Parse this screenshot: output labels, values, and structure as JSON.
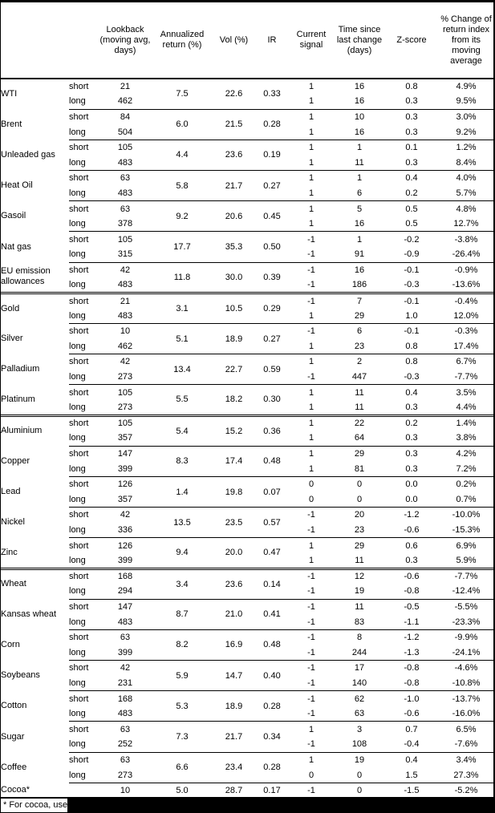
{
  "colors": {
    "text": "#000000",
    "background": "#ffffff",
    "border": "#000000",
    "redaction": "#000000"
  },
  "table": {
    "columns": [
      {
        "id": "commodity",
        "label": ""
      },
      {
        "id": "horizon",
        "label": ""
      },
      {
        "id": "lookback",
        "label": "Lookback (moving avg, days)"
      },
      {
        "id": "ann_return",
        "label": "Annualized return (%)"
      },
      {
        "id": "vol",
        "label": "Vol (%)"
      },
      {
        "id": "ir",
        "label": "IR"
      },
      {
        "id": "signal",
        "label": "Current signal"
      },
      {
        "id": "time_since",
        "label": "Time since last change (days)"
      },
      {
        "id": "zscore",
        "label": "Z-score"
      },
      {
        "id": "pct_change",
        "label": "% Change of return index from its moving average"
      }
    ],
    "groups": [
      {
        "name": "WTI",
        "section_start": false,
        "ann_return": "7.5",
        "vol": "22.6",
        "ir": "0.33",
        "rows": [
          {
            "horizon": "short",
            "lookback": "21",
            "signal": "1",
            "time": "16",
            "zscore": "0.8",
            "pct": "4.9%"
          },
          {
            "horizon": "long",
            "lookback": "462",
            "signal": "1",
            "time": "16",
            "zscore": "0.3",
            "pct": "9.5%"
          }
        ]
      },
      {
        "name": "Brent",
        "section_start": false,
        "ann_return": "6.0",
        "vol": "21.5",
        "ir": "0.28",
        "rows": [
          {
            "horizon": "short",
            "lookback": "84",
            "signal": "1",
            "time": "10",
            "zscore": "0.3",
            "pct": "3.0%"
          },
          {
            "horizon": "long",
            "lookback": "504",
            "signal": "1",
            "time": "16",
            "zscore": "0.3",
            "pct": "9.2%"
          }
        ]
      },
      {
        "name": "Unleaded gas",
        "section_start": false,
        "ann_return": "4.4",
        "vol": "23.6",
        "ir": "0.19",
        "rows": [
          {
            "horizon": "short",
            "lookback": "105",
            "signal": "1",
            "time": "1",
            "zscore": "0.1",
            "pct": "1.2%"
          },
          {
            "horizon": "long",
            "lookback": "483",
            "signal": "1",
            "time": "11",
            "zscore": "0.3",
            "pct": "8.4%"
          }
        ]
      },
      {
        "name": "Heat Oil",
        "section_start": false,
        "ann_return": "5.8",
        "vol": "21.7",
        "ir": "0.27",
        "rows": [
          {
            "horizon": "short",
            "lookback": "63",
            "signal": "1",
            "time": "1",
            "zscore": "0.4",
            "pct": "4.0%"
          },
          {
            "horizon": "long",
            "lookback": "483",
            "signal": "1",
            "time": "6",
            "zscore": "0.2",
            "pct": "5.7%"
          }
        ]
      },
      {
        "name": "Gasoil",
        "section_start": false,
        "ann_return": "9.2",
        "vol": "20.6",
        "ir": "0.45",
        "rows": [
          {
            "horizon": "short",
            "lookback": "63",
            "signal": "1",
            "time": "5",
            "zscore": "0.5",
            "pct": "4.8%"
          },
          {
            "horizon": "long",
            "lookback": "378",
            "signal": "1",
            "time": "16",
            "zscore": "0.5",
            "pct": "12.7%"
          }
        ]
      },
      {
        "name": "Nat gas",
        "section_start": false,
        "ann_return": "17.7",
        "vol": "35.3",
        "ir": "0.50",
        "rows": [
          {
            "horizon": "short",
            "lookback": "105",
            "signal": "-1",
            "time": "1",
            "zscore": "-0.2",
            "pct": "-3.8%"
          },
          {
            "horizon": "long",
            "lookback": "315",
            "signal": "-1",
            "time": "91",
            "zscore": "-0.9",
            "pct": "-26.4%"
          }
        ]
      },
      {
        "name": "EU emission allowances",
        "section_start": false,
        "ann_return": "11.8",
        "vol": "30.0",
        "ir": "0.39",
        "rows": [
          {
            "horizon": "short",
            "lookback": "42",
            "signal": "-1",
            "time": "16",
            "zscore": "-0.1",
            "pct": "-0.9%"
          },
          {
            "horizon": "long",
            "lookback": "483",
            "signal": "-1",
            "time": "186",
            "zscore": "-0.3",
            "pct": "-13.6%"
          }
        ]
      },
      {
        "name": "Gold",
        "section_start": true,
        "ann_return": "3.1",
        "vol": "10.5",
        "ir": "0.29",
        "rows": [
          {
            "horizon": "short",
            "lookback": "21",
            "signal": "-1",
            "time": "7",
            "zscore": "-0.1",
            "pct": "-0.4%"
          },
          {
            "horizon": "long",
            "lookback": "483",
            "signal": "1",
            "time": "29",
            "zscore": "1.0",
            "pct": "12.0%"
          }
        ]
      },
      {
        "name": "Silver",
        "section_start": false,
        "ann_return": "5.1",
        "vol": "18.9",
        "ir": "0.27",
        "rows": [
          {
            "horizon": "short",
            "lookback": "10",
            "signal": "-1",
            "time": "6",
            "zscore": "-0.1",
            "pct": "-0.3%"
          },
          {
            "horizon": "long",
            "lookback": "462",
            "signal": "1",
            "time": "23",
            "zscore": "0.8",
            "pct": "17.4%"
          }
        ]
      },
      {
        "name": "Palladium",
        "section_start": false,
        "ann_return": "13.4",
        "vol": "22.7",
        "ir": "0.59",
        "rows": [
          {
            "horizon": "short",
            "lookback": "42",
            "signal": "1",
            "time": "2",
            "zscore": "0.8",
            "pct": "6.7%"
          },
          {
            "horizon": "long",
            "lookback": "273",
            "signal": "-1",
            "time": "447",
            "zscore": "-0.3",
            "pct": "-7.7%"
          }
        ]
      },
      {
        "name": "Platinum",
        "section_start": false,
        "ann_return": "5.5",
        "vol": "18.2",
        "ir": "0.30",
        "rows": [
          {
            "horizon": "short",
            "lookback": "105",
            "signal": "1",
            "time": "11",
            "zscore": "0.4",
            "pct": "3.5%"
          },
          {
            "horizon": "long",
            "lookback": "273",
            "signal": "1",
            "time": "11",
            "zscore": "0.3",
            "pct": "4.4%"
          }
        ]
      },
      {
        "name": "Aluminium",
        "section_start": true,
        "ann_return": "5.4",
        "vol": "15.2",
        "ir": "0.36",
        "rows": [
          {
            "horizon": "short",
            "lookback": "105",
            "signal": "1",
            "time": "22",
            "zscore": "0.2",
            "pct": "1.4%"
          },
          {
            "horizon": "long",
            "lookback": "357",
            "signal": "1",
            "time": "64",
            "zscore": "0.3",
            "pct": "3.8%"
          }
        ]
      },
      {
        "name": "Copper",
        "section_start": false,
        "ann_return": "8.3",
        "vol": "17.4",
        "ir": "0.48",
        "rows": [
          {
            "horizon": "short",
            "lookback": "147",
            "signal": "1",
            "time": "29",
            "zscore": "0.3",
            "pct": "4.2%"
          },
          {
            "horizon": "long",
            "lookback": "399",
            "signal": "1",
            "time": "81",
            "zscore": "0.3",
            "pct": "7.2%"
          }
        ]
      },
      {
        "name": "Lead",
        "section_start": false,
        "ann_return": "1.4",
        "vol": "19.8",
        "ir": "0.07",
        "rows": [
          {
            "horizon": "short",
            "lookback": "126",
            "signal": "0",
            "time": "0",
            "zscore": "0.0",
            "pct": "0.2%"
          },
          {
            "horizon": "long",
            "lookback": "357",
            "signal": "0",
            "time": "0",
            "zscore": "0.0",
            "pct": "0.7%"
          }
        ]
      },
      {
        "name": "Nickel",
        "section_start": false,
        "ann_return": "13.5",
        "vol": "23.5",
        "ir": "0.57",
        "rows": [
          {
            "horizon": "short",
            "lookback": "42",
            "signal": "-1",
            "time": "20",
            "zscore": "-1.2",
            "pct": "-10.0%"
          },
          {
            "horizon": "long",
            "lookback": "336",
            "signal": "-1",
            "time": "23",
            "zscore": "-0.6",
            "pct": "-15.3%"
          }
        ]
      },
      {
        "name": "Zinc",
        "section_start": false,
        "ann_return": "9.4",
        "vol": "20.0",
        "ir": "0.47",
        "rows": [
          {
            "horizon": "short",
            "lookback": "126",
            "signal": "1",
            "time": "29",
            "zscore": "0.6",
            "pct": "6.9%"
          },
          {
            "horizon": "long",
            "lookback": "399",
            "signal": "1",
            "time": "11",
            "zscore": "0.3",
            "pct": "5.9%"
          }
        ]
      },
      {
        "name": "Wheat",
        "section_start": true,
        "ann_return": "3.4",
        "vol": "23.6",
        "ir": "0.14",
        "rows": [
          {
            "horizon": "short",
            "lookback": "168",
            "signal": "-1",
            "time": "12",
            "zscore": "-0.6",
            "pct": "-7.7%"
          },
          {
            "horizon": "long",
            "lookback": "294",
            "signal": "-1",
            "time": "19",
            "zscore": "-0.8",
            "pct": "-12.4%"
          }
        ]
      },
      {
        "name": "Kansas wheat",
        "section_start": false,
        "ann_return": "8.7",
        "vol": "21.0",
        "ir": "0.41",
        "rows": [
          {
            "horizon": "short",
            "lookback": "147",
            "signal": "-1",
            "time": "11",
            "zscore": "-0.5",
            "pct": "-5.5%"
          },
          {
            "horizon": "long",
            "lookback": "483",
            "signal": "-1",
            "time": "83",
            "zscore": "-1.1",
            "pct": "-23.3%"
          }
        ]
      },
      {
        "name": "Corn",
        "section_start": false,
        "ann_return": "8.2",
        "vol": "16.9",
        "ir": "0.48",
        "rows": [
          {
            "horizon": "short",
            "lookback": "63",
            "signal": "-1",
            "time": "8",
            "zscore": "-1.2",
            "pct": "-9.9%"
          },
          {
            "horizon": "long",
            "lookback": "399",
            "signal": "-1",
            "time": "244",
            "zscore": "-1.3",
            "pct": "-24.1%"
          }
        ]
      },
      {
        "name": "Soybeans",
        "section_start": false,
        "ann_return": "5.9",
        "vol": "14.7",
        "ir": "0.40",
        "rows": [
          {
            "horizon": "short",
            "lookback": "42",
            "signal": "-1",
            "time": "17",
            "zscore": "-0.8",
            "pct": "-4.6%"
          },
          {
            "horizon": "long",
            "lookback": "231",
            "signal": "-1",
            "time": "140",
            "zscore": "-0.8",
            "pct": "-10.8%"
          }
        ]
      },
      {
        "name": "Cotton",
        "section_start": false,
        "ann_return": "5.3",
        "vol": "18.9",
        "ir": "0.28",
        "rows": [
          {
            "horizon": "short",
            "lookback": "168",
            "signal": "-1",
            "time": "62",
            "zscore": "-1.0",
            "pct": "-13.7%"
          },
          {
            "horizon": "long",
            "lookback": "483",
            "signal": "-1",
            "time": "63",
            "zscore": "-0.6",
            "pct": "-16.0%"
          }
        ]
      },
      {
        "name": "Sugar",
        "section_start": false,
        "ann_return": "7.3",
        "vol": "21.7",
        "ir": "0.34",
        "rows": [
          {
            "horizon": "short",
            "lookback": "63",
            "signal": "1",
            "time": "3",
            "zscore": "0.7",
            "pct": "6.5%"
          },
          {
            "horizon": "long",
            "lookback": "252",
            "signal": "-1",
            "time": "108",
            "zscore": "-0.4",
            "pct": "-7.6%"
          }
        ]
      },
      {
        "name": "Coffee",
        "section_start": false,
        "ann_return": "6.6",
        "vol": "23.4",
        "ir": "0.28",
        "rows": [
          {
            "horizon": "short",
            "lookback": "63",
            "signal": "1",
            "time": "19",
            "zscore": "0.4",
            "pct": "3.4%"
          },
          {
            "horizon": "long",
            "lookback": "273",
            "signal": "0",
            "time": "0",
            "zscore": "1.5",
            "pct": "27.3%"
          }
        ]
      },
      {
        "name": "Cocoa*",
        "section_start": false,
        "ann_return": "5.0",
        "vol": "28.7",
        "ir": "0.17",
        "rows": [
          {
            "horizon": "",
            "lookback": "10",
            "signal": "-1",
            "time": "0",
            "zscore": "-1.5",
            "pct": "-5.2%"
          }
        ]
      }
    ],
    "footnote": "* For cocoa, uses c"
  }
}
